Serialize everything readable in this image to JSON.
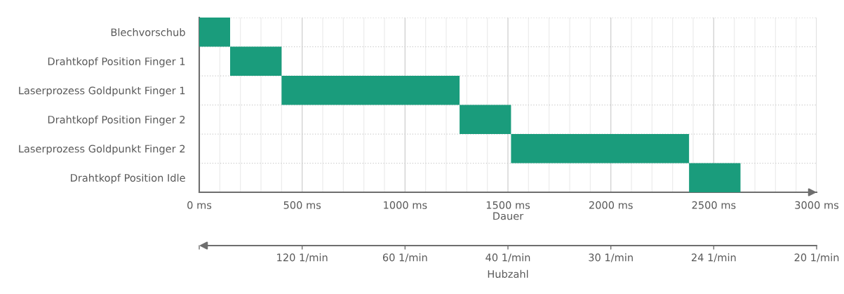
{
  "chart_data": {
    "type": "bar",
    "orientation": "horizontal",
    "categories": [
      "Blechvorschub",
      "Drahtkopf Position Finger 1",
      "Laserprozess Goldpunkt Finger 1",
      "Drahtkopf Position Finger 2",
      "Laserprozess Goldpunkt Finger 2",
      "Drahtkopf Position Idle"
    ],
    "base": [
      0,
      150,
      400,
      1265,
      1515,
      2380
    ],
    "values": [
      150,
      250,
      865,
      250,
      865,
      250
    ],
    "color": "#1a9c7c",
    "xlim": [
      0,
      3000
    ],
    "xticks": [
      {
        "value": 0,
        "label": "0 ms"
      },
      {
        "value": 100,
        "label": null
      },
      {
        "value": 200,
        "label": null
      },
      {
        "value": 300,
        "label": null
      },
      {
        "value": 400,
        "label": null
      },
      {
        "value": 500,
        "label": "500 ms"
      },
      {
        "value": 600,
        "label": null
      },
      {
        "value": 700,
        "label": null
      },
      {
        "value": 800,
        "label": null
      },
      {
        "value": 900,
        "label": null
      },
      {
        "value": 1000,
        "label": "1000 ms"
      },
      {
        "value": 1100,
        "label": null
      },
      {
        "value": 1200,
        "label": null
      },
      {
        "value": 1300,
        "label": null
      },
      {
        "value": 1400,
        "label": null
      },
      {
        "value": 1500,
        "label": "1500 ms"
      },
      {
        "value": 1600,
        "label": null
      },
      {
        "value": 1700,
        "label": null
      },
      {
        "value": 1800,
        "label": null
      },
      {
        "value": 1900,
        "label": null
      },
      {
        "value": 2000,
        "label": "2000 ms"
      },
      {
        "value": 2100,
        "label": null
      },
      {
        "value": 2200,
        "label": null
      },
      {
        "value": 2300,
        "label": null
      },
      {
        "value": 2400,
        "label": null
      },
      {
        "value": 2500,
        "label": "2500 ms"
      },
      {
        "value": 2600,
        "label": null
      },
      {
        "value": 2700,
        "label": null
      },
      {
        "value": 2800,
        "label": null
      },
      {
        "value": 2900,
        "label": null
      },
      {
        "value": 3000,
        "label": "3000 ms"
      }
    ],
    "xlabel": "Dauer",
    "annotations": [
      "120 1/min",
      "60 1/min",
      "40 1/min",
      "30 1/min",
      "24 1/min",
      "20 1/min",
      "Hubzahl"
    ],
    "grid": true
  }
}
